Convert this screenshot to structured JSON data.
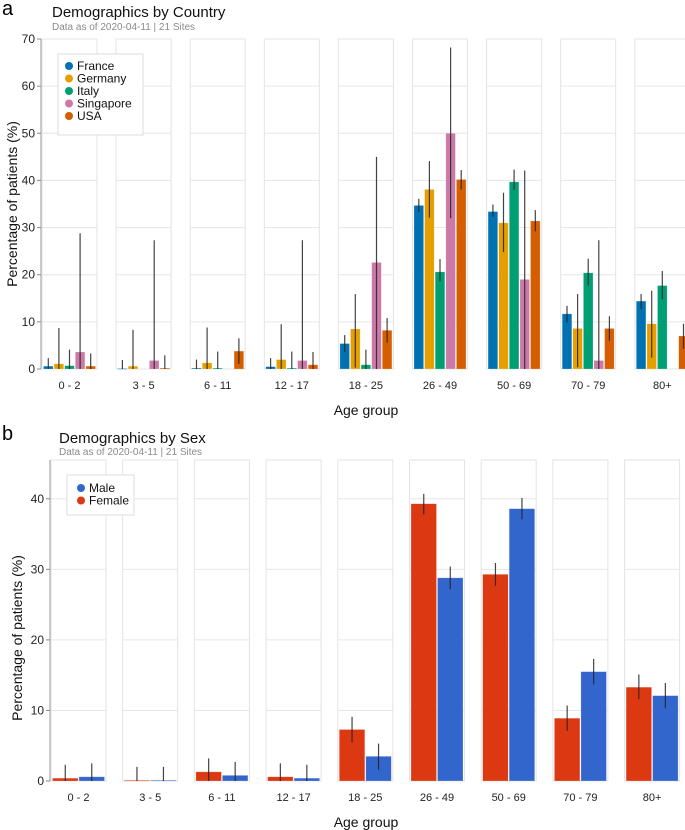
{
  "chart_data": [
    {
      "panel_letter": "a",
      "type": "bar",
      "title": "Demographics by Country",
      "subtitle": "Data as of 2020-04-11 | 21 Sites",
      "xlabel": "Age group",
      "ylabel": "Percentage of patients (%)",
      "ylim": [
        0,
        70
      ],
      "yticks": [
        0,
        10,
        20,
        30,
        40,
        50,
        60,
        70
      ],
      "grid": true,
      "legend_position": "top-left",
      "categories": [
        "0 - 2",
        "3 - 5",
        "6 - 11",
        "12 - 17",
        "18 - 25",
        "26 - 49",
        "50 - 69",
        "70 - 79",
        "80+"
      ],
      "series": [
        {
          "name": "France",
          "color": "#0072b2",
          "values": [
            0.6,
            0.1,
            0.2,
            0.5,
            5.4,
            34.7,
            33.4,
            11.7,
            14.4
          ],
          "err_low": [
            0.0,
            0.0,
            0.0,
            0.0,
            3.6,
            33.3,
            32.3,
            9.9,
            12.7
          ],
          "err_high": [
            2.3,
            1.9,
            2.0,
            2.3,
            7.2,
            36.1,
            34.9,
            13.4,
            15.9
          ]
        },
        {
          "name": "Germany",
          "color": "#e69f00",
          "values": [
            1.1,
            0.6,
            1.3,
            2.0,
            8.5,
            38.1,
            31.0,
            8.6,
            9.6
          ],
          "err_low": [
            0.0,
            0.0,
            0.0,
            0.0,
            0.3,
            32.1,
            24.8,
            0.4,
            2.4
          ],
          "err_high": [
            8.7,
            8.3,
            8.8,
            9.5,
            15.9,
            44.1,
            37.4,
            15.9,
            16.6
          ]
        },
        {
          "name": "Italy",
          "color": "#009e73",
          "values": [
            0.7,
            0.0,
            0.2,
            0.2,
            0.9,
            20.6,
            39.7,
            20.4,
            17.7
          ],
          "err_low": [
            0.0,
            0.0,
            0.0,
            0.0,
            0.0,
            18.6,
            38.0,
            17.7,
            14.8
          ],
          "err_high": [
            4.1,
            0.0,
            3.7,
            3.7,
            4.1,
            23.3,
            42.3,
            23.4,
            20.8
          ]
        },
        {
          "name": "Singapore",
          "color": "#cc79a7",
          "values": [
            3.6,
            1.8,
            0.0,
            1.8,
            22.6,
            50.0,
            19.0,
            1.8,
            0.0
          ],
          "err_low": [
            0.0,
            0.0,
            0.0,
            0.0,
            0.0,
            32.0,
            0.0,
            0.0,
            0.0
          ],
          "err_high": [
            28.8,
            27.3,
            0.0,
            27.3,
            45.0,
            68.2,
            42.1,
            27.3,
            0.0
          ]
        },
        {
          "name": "USA",
          "color": "#d55e00",
          "values": [
            0.6,
            0.2,
            3.8,
            0.9,
            8.2,
            40.2,
            31.4,
            8.6,
            7.0
          ],
          "err_low": [
            0.0,
            0.0,
            1.1,
            0.0,
            5.6,
            38.1,
            29.2,
            6.0,
            4.3
          ],
          "err_high": [
            3.3,
            2.9,
            6.5,
            3.6,
            10.8,
            42.2,
            33.7,
            11.2,
            9.6
          ]
        }
      ]
    },
    {
      "panel_letter": "b",
      "type": "bar",
      "title": "Demographics by Sex",
      "subtitle": "Data as of 2020-04-11 | 21 Sites",
      "xlabel": "Age group",
      "ylabel": "Percentage of patients (%)",
      "ylim": [
        0,
        45.5
      ],
      "yticks": [
        0,
        10,
        20,
        30,
        40
      ],
      "grid": true,
      "legend_position": "top-left",
      "categories": [
        "0 - 2",
        "3 - 5",
        "6 - 11",
        "12 - 17",
        "18 - 25",
        "26 - 49",
        "50 - 69",
        "70 - 79",
        "80+"
      ],
      "legend_order": [
        "Male",
        "Female"
      ],
      "series": [
        {
          "name": "Female",
          "color": "#dc3912",
          "values": [
            0.4,
            0.1,
            1.3,
            0.6,
            7.3,
            39.3,
            29.3,
            8.9,
            13.3
          ],
          "err_low": [
            0.0,
            0.0,
            0.0,
            0.0,
            5.5,
            37.8,
            27.7,
            7.1,
            11.6
          ],
          "err_high": [
            2.3,
            2.0,
            3.2,
            2.5,
            9.1,
            40.7,
            30.9,
            10.7,
            15.1
          ]
        },
        {
          "name": "Male",
          "color": "#3366cc",
          "values": [
            0.6,
            0.1,
            0.8,
            0.4,
            3.5,
            28.8,
            38.6,
            15.5,
            12.1
          ],
          "err_low": [
            0.0,
            0.0,
            0.0,
            0.0,
            1.6,
            27.2,
            37.1,
            13.7,
            10.3
          ],
          "err_high": [
            2.5,
            2.0,
            2.7,
            2.3,
            5.3,
            30.4,
            40.1,
            17.3,
            13.9
          ]
        }
      ]
    }
  ]
}
